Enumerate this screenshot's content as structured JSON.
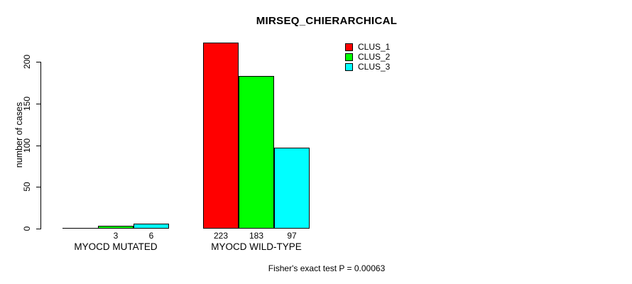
{
  "chart_data": {
    "type": "bar",
    "title": "MIRSEQ_CHIERARCHICAL",
    "xlabel": "",
    "ylabel": "number of cases",
    "categories": [
      "MYOCD MUTATED",
      "MYOCD WILD-TYPE"
    ],
    "series": [
      {
        "name": "CLUS_1",
        "color": "#ff0000",
        "values": [
          0,
          223
        ]
      },
      {
        "name": "CLUS_2",
        "color": "#00ff00",
        "values": [
          3,
          183
        ]
      },
      {
        "name": "CLUS_3",
        "color": "#00ffff",
        "values": [
          6,
          97
        ]
      }
    ],
    "yticks": [
      0,
      50,
      100,
      150,
      200
    ],
    "ylim": [
      0,
      230
    ],
    "grid": false,
    "bar_outline_color": "#000000",
    "legend_position": "top-right",
    "value_labels": {
      "shown_under_bars": true,
      "hidden_for_zero": true
    },
    "annotation": "Fisher's exact test P = 0.00063"
  }
}
